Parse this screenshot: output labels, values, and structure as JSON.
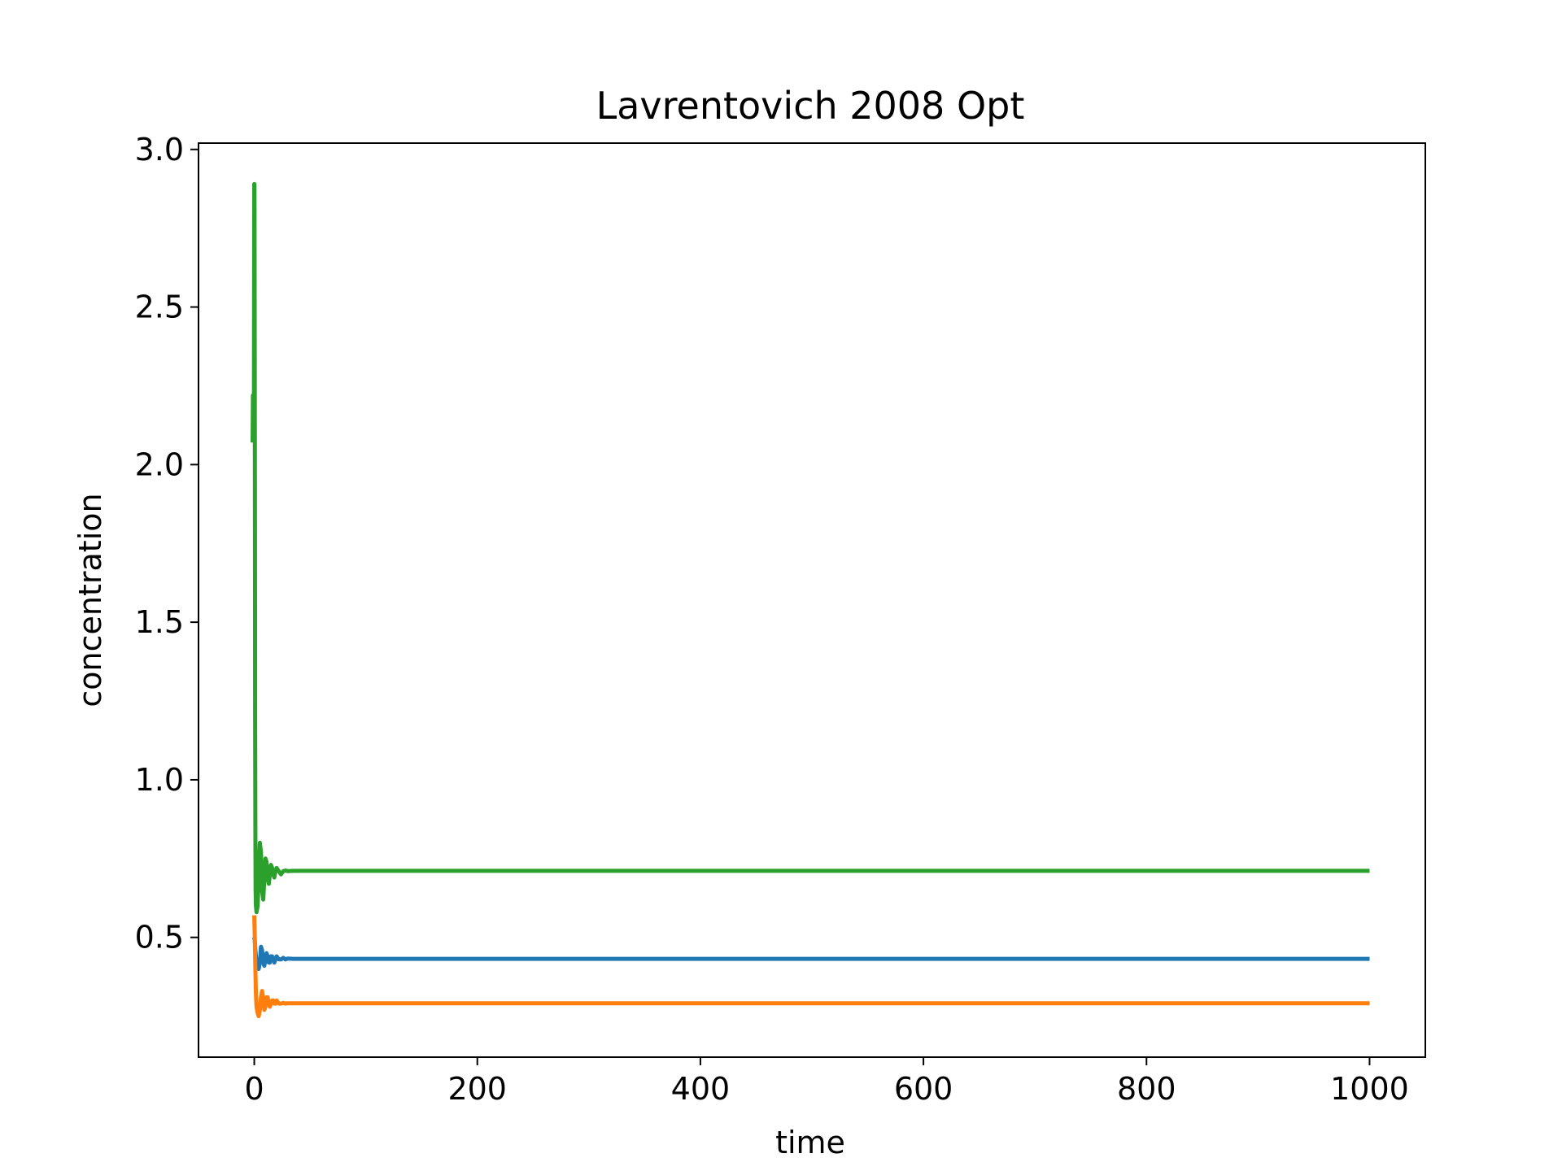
{
  "chart_data": {
    "type": "line",
    "title": "Lavrentovich 2008 Opt",
    "xlabel": "time",
    "ylabel": "concentration",
    "xlim": [
      -50,
      1050
    ],
    "ylim": [
      0.12,
      3.02
    ],
    "xticks": [
      0,
      200,
      400,
      600,
      800,
      1000
    ],
    "xtick_labels": [
      "0",
      "200",
      "400",
      "600",
      "800",
      "1000"
    ],
    "yticks": [
      0.5,
      1.0,
      1.5,
      2.0,
      2.5,
      3.0
    ],
    "ytick_labels": [
      "0.5",
      "1.0",
      "1.5",
      "2.0",
      "2.5",
      "3.0"
    ],
    "grid": false,
    "legend": false,
    "series": [
      {
        "color": "#1f77b4",
        "x": [
          0,
          0.5,
          1,
          1.5,
          2,
          3,
          4,
          5,
          6,
          7,
          8,
          9,
          10,
          11,
          12,
          13,
          14,
          15,
          16,
          17,
          18,
          19,
          20,
          22,
          24,
          26,
          28,
          30,
          35,
          40,
          50,
          100,
          200,
          400,
          600,
          800,
          1000
        ],
        "y": [
          0.5,
          0.49,
          0.46,
          0.44,
          0.42,
          0.41,
          0.4,
          0.42,
          0.47,
          0.46,
          0.42,
          0.41,
          0.43,
          0.45,
          0.44,
          0.42,
          0.42,
          0.44,
          0.44,
          0.43,
          0.42,
          0.43,
          0.44,
          0.43,
          0.43,
          0.435,
          0.43,
          0.433,
          0.432,
          0.432,
          0.432,
          0.432,
          0.432,
          0.432,
          0.432,
          0.432,
          0.432
        ]
      },
      {
        "color": "#ff7f0e",
        "x": [
          0,
          0.5,
          1,
          1.5,
          2,
          3,
          4,
          5,
          6,
          7,
          8,
          9,
          10,
          11,
          12,
          13,
          14,
          15,
          16,
          17,
          18,
          19,
          20,
          22,
          24,
          26,
          28,
          30,
          35,
          40,
          50,
          100,
          200,
          400,
          600,
          800,
          1000
        ],
        "y": [
          0.57,
          0.5,
          0.4,
          0.32,
          0.28,
          0.26,
          0.25,
          0.27,
          0.31,
          0.33,
          0.3,
          0.27,
          0.28,
          0.31,
          0.31,
          0.29,
          0.28,
          0.29,
          0.3,
          0.3,
          0.29,
          0.29,
          0.3,
          0.29,
          0.29,
          0.292,
          0.29,
          0.291,
          0.291,
          0.291,
          0.291,
          0.291,
          0.291,
          0.291,
          0.291,
          0.291,
          0.291
        ]
      },
      {
        "color": "#2ca02c",
        "x": [
          -1.5,
          -1.2,
          -0.9,
          -0.6,
          -0.3,
          0,
          0.2,
          0.4,
          0.6,
          0.8,
          1,
          1.2,
          1.5,
          2,
          3,
          4,
          5,
          6,
          7,
          8,
          9,
          10,
          11,
          12,
          13,
          14,
          15,
          16,
          17,
          18,
          19,
          20,
          22,
          24,
          26,
          28,
          30,
          35,
          40,
          50,
          100,
          200,
          400,
          600,
          800,
          1000
        ],
        "y": [
          2.07,
          2.22,
          2.09,
          2.2,
          2.1,
          2.89,
          2.89,
          2.4,
          1.8,
          1.2,
          0.85,
          0.65,
          0.6,
          0.58,
          0.6,
          0.7,
          0.8,
          0.77,
          0.65,
          0.62,
          0.68,
          0.75,
          0.74,
          0.69,
          0.67,
          0.7,
          0.73,
          0.72,
          0.7,
          0.69,
          0.71,
          0.72,
          0.71,
          0.7,
          0.71,
          0.712,
          0.71,
          0.711,
          0.711,
          0.711,
          0.711,
          0.711,
          0.711,
          0.711,
          0.711,
          0.711
        ]
      }
    ]
  }
}
